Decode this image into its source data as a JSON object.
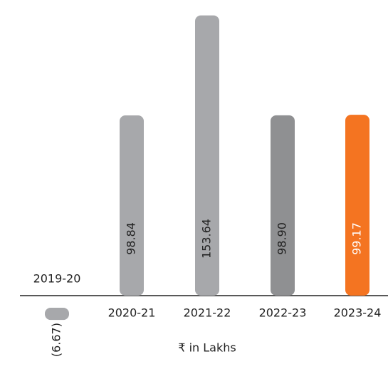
{
  "chart_data": {
    "type": "bar",
    "categories": [
      "2019-20",
      "2020-21",
      "2021-22",
      "2022-23",
      "2023-24"
    ],
    "values": [
      -6.67,
      98.84,
      153.64,
      98.9,
      99.17
    ],
    "value_labels": [
      "(6.67)",
      "98.84",
      "153.64",
      "98.90",
      "99.17"
    ],
    "colors": [
      "#a7a8ab",
      "#a7a8ab",
      "#a7a8ab",
      "#8f9092",
      "#f47421"
    ],
    "y_axis_label": "₹ in Lakhs"
  }
}
